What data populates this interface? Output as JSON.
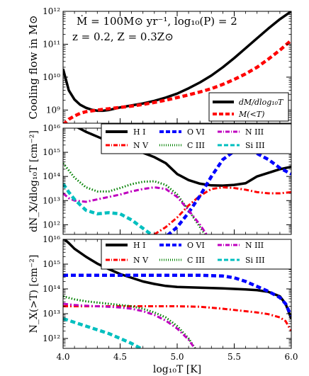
{
  "chart_data": [
    {
      "type": "line",
      "annotation": [
        "Ṁ = 100M⊙ yr⁻¹, log₁₀(P) = 2",
        "z = 0.2, Z = 0.3Z⊙"
      ],
      "xlabel": "",
      "ylabel": "Cooling flow in M⊙",
      "xlim": [
        4.0,
        6.0
      ],
      "ylim_log10": [
        8.6,
        12.0
      ],
      "y_ticks": [
        "10⁹",
        "10¹⁰",
        "10¹¹",
        "10¹²"
      ],
      "legend_position": "lower-right",
      "series": [
        {
          "name": "dM/dlog₁₀T",
          "color": "#000000",
          "dash": "solid",
          "x": [
            4.0,
            4.05,
            4.1,
            4.15,
            4.2,
            4.25,
            4.3,
            4.35,
            4.4,
            4.5,
            4.6,
            4.7,
            4.8,
            4.9,
            5.0,
            5.1,
            5.2,
            5.3,
            5.4,
            5.5,
            5.6,
            5.7,
            5.8,
            5.9,
            6.0
          ],
          "y": [
            10.25,
            9.6,
            9.32,
            9.16,
            9.07,
            9.01,
            8.98,
            8.98,
            9.0,
            9.08,
            9.14,
            9.2,
            9.28,
            9.38,
            9.5,
            9.66,
            9.84,
            10.05,
            10.3,
            10.58,
            10.88,
            11.18,
            11.48,
            11.76,
            12.0
          ]
        },
        {
          "name": "M(<T)",
          "color": "#ff0000",
          "dash": "dashed",
          "x": [
            4.0,
            4.05,
            4.1,
            4.15,
            4.2,
            4.3,
            4.4,
            4.5,
            4.6,
            4.7,
            4.8,
            4.9,
            5.0,
            5.1,
            5.2,
            5.3,
            5.4,
            5.5,
            5.6,
            5.7,
            5.8,
            5.9,
            6.0
          ],
          "y": [
            8.55,
            8.72,
            8.82,
            8.9,
            8.95,
            9.0,
            9.04,
            9.08,
            9.12,
            9.17,
            9.23,
            9.3,
            9.38,
            9.46,
            9.55,
            9.65,
            9.78,
            9.93,
            10.1,
            10.3,
            10.55,
            10.82,
            11.12
          ]
        }
      ]
    },
    {
      "type": "line",
      "xlabel": "",
      "ylabel": "dN_X/dlog₁₀T [cm⁻²]",
      "xlim": [
        4.0,
        6.0
      ],
      "ylim_log10": [
        11.6,
        16.0
      ],
      "y_ticks": [
        "10¹²",
        "10¹³",
        "10¹⁴",
        "10¹⁵",
        "10¹⁶"
      ],
      "legend_position": "top",
      "series": [
        {
          "name": "H I",
          "color": "#000000",
          "dash": "solid",
          "x": [
            4.0,
            4.05,
            4.1,
            4.2,
            4.3,
            4.4,
            4.5,
            4.6,
            4.7,
            4.8,
            4.9,
            5.0,
            5.1,
            5.2,
            5.3,
            5.4,
            5.5,
            5.6,
            5.7,
            5.8,
            5.9,
            6.0
          ],
          "y": [
            16.6,
            16.35,
            16.1,
            15.85,
            15.65,
            15.45,
            15.3,
            15.12,
            14.98,
            14.8,
            14.55,
            14.1,
            13.85,
            13.7,
            13.63,
            13.62,
            13.65,
            13.72,
            14.0,
            14.15,
            14.3,
            14.4
          ]
        },
        {
          "name": "N V",
          "color": "#ff0000",
          "dash": "dashdot",
          "x": [
            4.55,
            4.7,
            4.8,
            4.9,
            5.0,
            5.1,
            5.2,
            5.3,
            5.4,
            5.5,
            5.6,
            5.7,
            5.8,
            5.9,
            6.0
          ],
          "y": [
            11.0,
            11.3,
            11.6,
            11.9,
            12.3,
            12.8,
            13.2,
            13.48,
            13.55,
            13.52,
            13.45,
            13.35,
            13.3,
            13.3,
            13.35
          ]
        },
        {
          "name": "O VI",
          "color": "#0000ff",
          "dash": "dashed",
          "x": [
            4.8,
            4.9,
            5.0,
            5.1,
            5.2,
            5.3,
            5.4,
            5.5,
            5.55,
            5.6,
            5.7,
            5.8,
            5.9,
            6.0
          ],
          "y": [
            11.2,
            11.5,
            11.9,
            12.5,
            13.2,
            14.0,
            14.7,
            15.05,
            15.15,
            15.12,
            14.95,
            14.7,
            14.35,
            14.1
          ]
        },
        {
          "name": "C III",
          "color": "#008000",
          "dash": "dotted",
          "x": [
            4.0,
            4.05,
            4.1,
            4.2,
            4.3,
            4.4,
            4.5,
            4.6,
            4.7,
            4.8,
            4.9,
            5.0,
            5.1,
            5.2,
            5.3
          ],
          "y": [
            14.55,
            14.25,
            13.95,
            13.55,
            13.38,
            13.38,
            13.52,
            13.68,
            13.78,
            13.8,
            13.65,
            13.25,
            12.6,
            11.9,
            11.2
          ]
        },
        {
          "name": "N III",
          "color": "#bf00bf",
          "dash": "dashdot",
          "x": [
            4.0,
            4.05,
            4.1,
            4.2,
            4.3,
            4.4,
            4.5,
            4.6,
            4.7,
            4.8,
            4.9,
            5.0,
            5.1,
            5.2,
            5.3
          ],
          "y": [
            13.3,
            13.1,
            13.0,
            12.95,
            13.05,
            13.15,
            13.25,
            13.38,
            13.48,
            13.55,
            13.48,
            13.15,
            12.6,
            12.0,
            11.3
          ]
        },
        {
          "name": "Si III",
          "color": "#00bfbf",
          "dash": "dashed",
          "x": [
            4.0,
            4.05,
            4.1,
            4.2,
            4.3,
            4.4,
            4.5,
            4.6,
            4.7,
            4.8,
            4.9,
            5.0
          ],
          "y": [
            13.7,
            13.35,
            13.05,
            12.6,
            12.45,
            12.5,
            12.45,
            12.2,
            11.85,
            11.5,
            11.2,
            10.9
          ]
        }
      ]
    },
    {
      "type": "line",
      "xlabel": "log₁₀T [K]",
      "ylabel": "N_X(>T) [cm⁻²]",
      "xlim": [
        4.0,
        6.0
      ],
      "ylim_log10": [
        11.6,
        16.0
      ],
      "x_ticks": [
        "4.0",
        "4.5",
        "5.0",
        "5.5",
        "6.0"
      ],
      "y_ticks": [
        "10¹²",
        "10¹³",
        "10¹⁴",
        "10¹⁵",
        "10¹⁶"
      ],
      "legend_position": "top",
      "series": [
        {
          "name": "H I",
          "color": "#000000",
          "dash": "solid",
          "x": [
            4.0,
            4.05,
            4.1,
            4.2,
            4.3,
            4.4,
            4.5,
            4.6,
            4.7,
            4.8,
            4.9,
            5.0,
            5.2,
            5.4,
            5.6,
            5.7,
            5.8,
            5.9,
            5.95,
            6.0
          ],
          "y": [
            16.05,
            15.85,
            15.62,
            15.3,
            15.02,
            14.8,
            14.6,
            14.45,
            14.3,
            14.2,
            14.12,
            14.08,
            14.05,
            14.02,
            13.98,
            13.95,
            13.88,
            13.7,
            13.4,
            12.8
          ]
        },
        {
          "name": "N V",
          "color": "#ff0000",
          "dash": "dashdot",
          "x": [
            4.0,
            4.5,
            5.0,
            5.2,
            5.4,
            5.6,
            5.7,
            5.8,
            5.9,
            5.95,
            6.0
          ],
          "y": [
            13.3,
            13.3,
            13.3,
            13.28,
            13.2,
            13.1,
            13.05,
            12.98,
            12.85,
            12.7,
            12.3
          ]
        },
        {
          "name": "O VI",
          "color": "#0000ff",
          "dash": "dashed",
          "x": [
            4.0,
            4.5,
            5.0,
            5.2,
            5.4,
            5.5,
            5.6,
            5.7,
            5.8,
            5.9,
            5.95,
            6.0
          ],
          "y": [
            14.55,
            14.55,
            14.55,
            14.55,
            14.52,
            14.45,
            14.3,
            14.1,
            13.9,
            13.65,
            13.4,
            12.9
          ]
        },
        {
          "name": "C III",
          "color": "#008000",
          "dash": "dotted",
          "x": [
            4.0,
            4.1,
            4.2,
            4.3,
            4.4,
            4.5,
            4.6,
            4.7,
            4.8,
            4.9,
            5.0,
            5.1,
            5.2
          ],
          "y": [
            13.7,
            13.58,
            13.5,
            13.45,
            13.4,
            13.35,
            13.3,
            13.2,
            13.05,
            12.85,
            12.5,
            12.0,
            11.3
          ]
        },
        {
          "name": "N III",
          "color": "#bf00bf",
          "dash": "dashdot",
          "x": [
            4.0,
            4.1,
            4.2,
            4.3,
            4.4,
            4.5,
            4.6,
            4.7,
            4.8,
            4.9,
            5.0,
            5.1,
            5.2
          ],
          "y": [
            13.4,
            13.35,
            13.32,
            13.3,
            13.28,
            13.25,
            13.2,
            13.1,
            12.95,
            12.72,
            12.4,
            11.95,
            11.3
          ]
        },
        {
          "name": "Si III",
          "color": "#00bfbf",
          "dash": "dashed",
          "x": [
            4.0,
            4.1,
            4.2,
            4.3,
            4.4,
            4.5,
            4.6,
            4.7,
            4.8,
            4.9
          ],
          "y": [
            12.8,
            12.65,
            12.5,
            12.35,
            12.2,
            12.0,
            11.8,
            11.55,
            11.3,
            11.0
          ]
        }
      ]
    }
  ]
}
